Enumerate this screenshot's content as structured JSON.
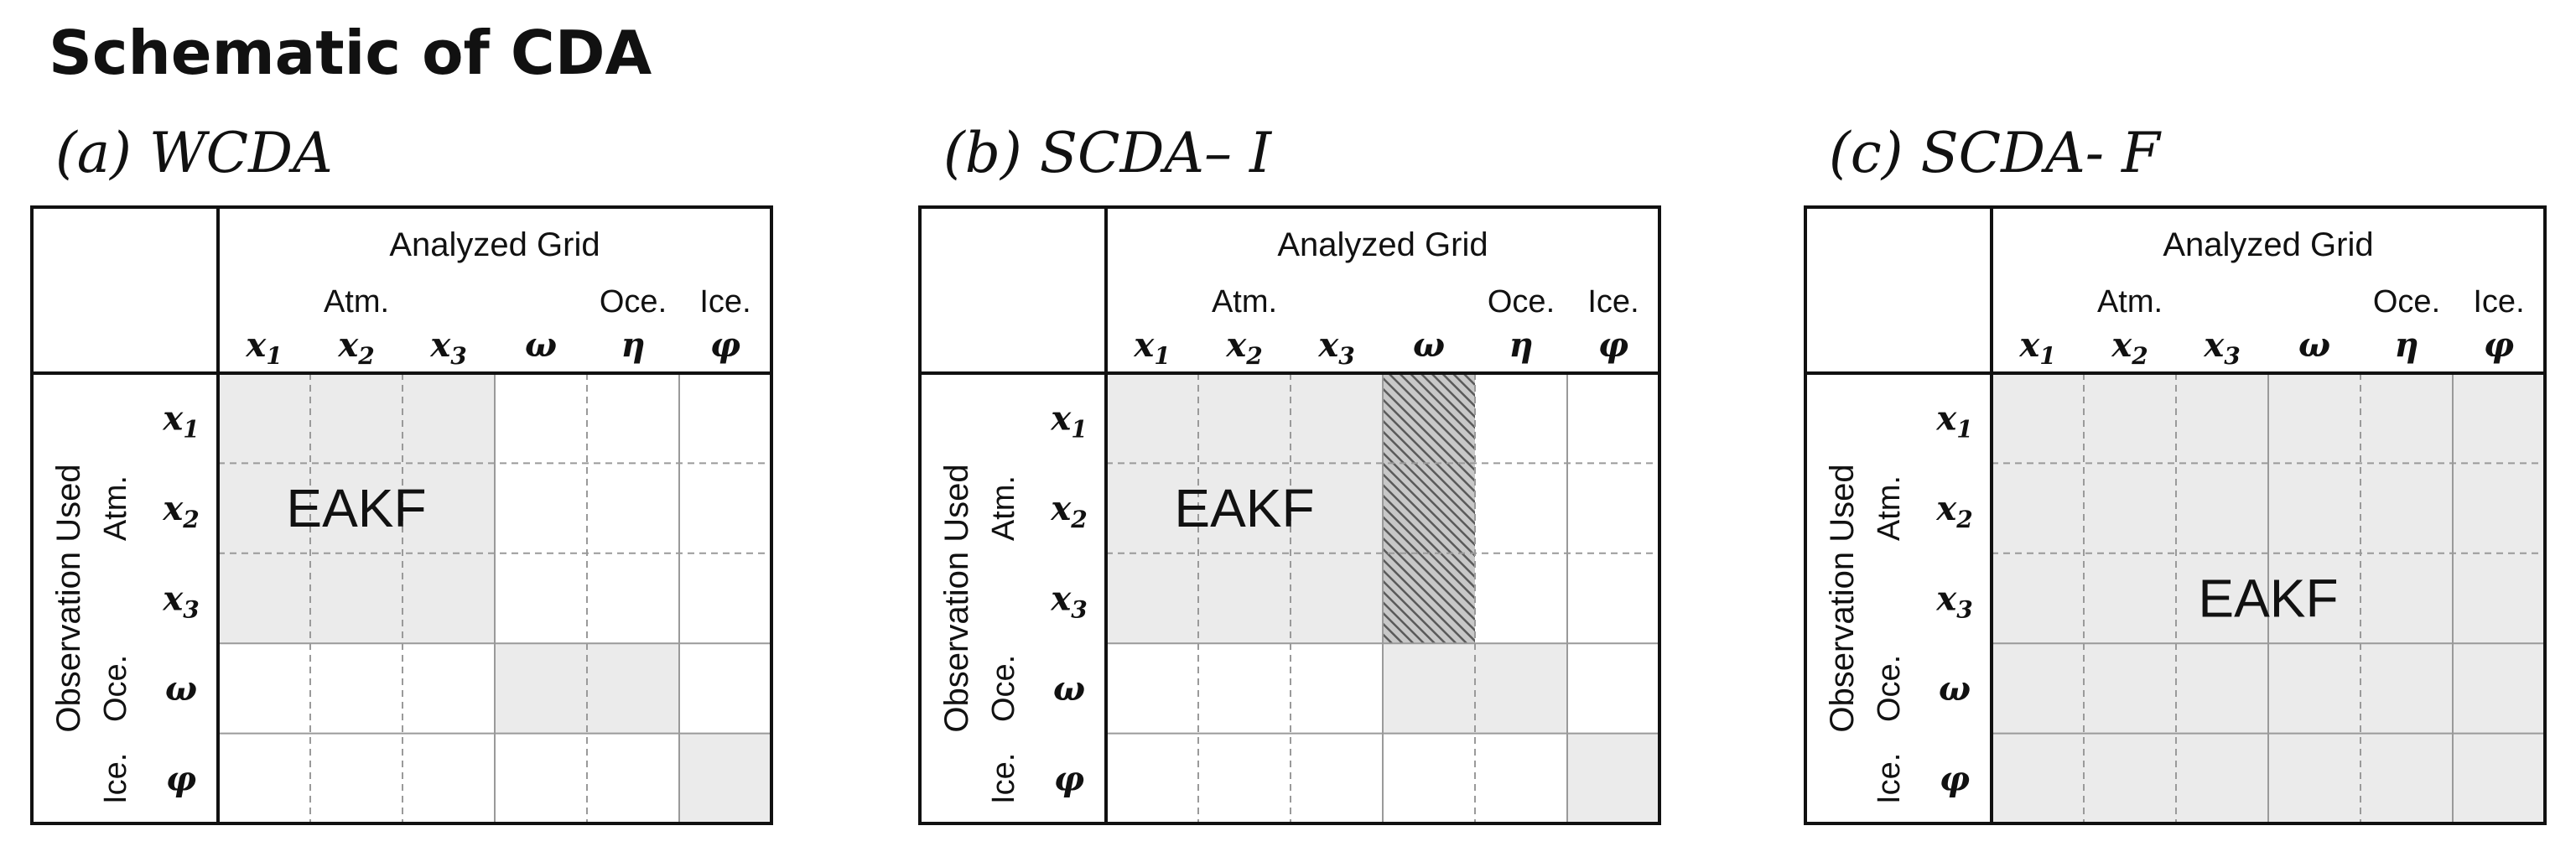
{
  "title": "Schematic of CDA",
  "panels": [
    {
      "id": "a",
      "title": "(a) WCDA",
      "fill": "wcda",
      "eakf_label": "EAKF"
    },
    {
      "id": "b",
      "title": "(b) SCDA– I",
      "fill": "scda-i",
      "eakf_label": "EAKF"
    },
    {
      "id": "c",
      "title": "(c) SCDA- F",
      "fill": "scda-f",
      "eakf_label": "EAKF"
    }
  ],
  "labels": {
    "analyzed_grid": "Analyzed Grid",
    "observation_used": "Observation Used"
  },
  "column_groups": [
    "Atm.",
    "Oce.",
    "Ice."
  ],
  "row_groups": [
    "Atm.",
    "Oce.",
    "Ice."
  ],
  "columns": [
    "x1",
    "x2",
    "x3",
    "ω",
    "η",
    "φ"
  ],
  "rows": [
    "x1",
    "x2",
    "x3",
    "ω",
    "φ"
  ],
  "colors": {
    "shaded": "#ebebeb",
    "hatch": "#7a7a7a",
    "border": "#111111",
    "grid_dashed": "#9a9a9a",
    "grid_solid": "#9a9a9a"
  }
}
